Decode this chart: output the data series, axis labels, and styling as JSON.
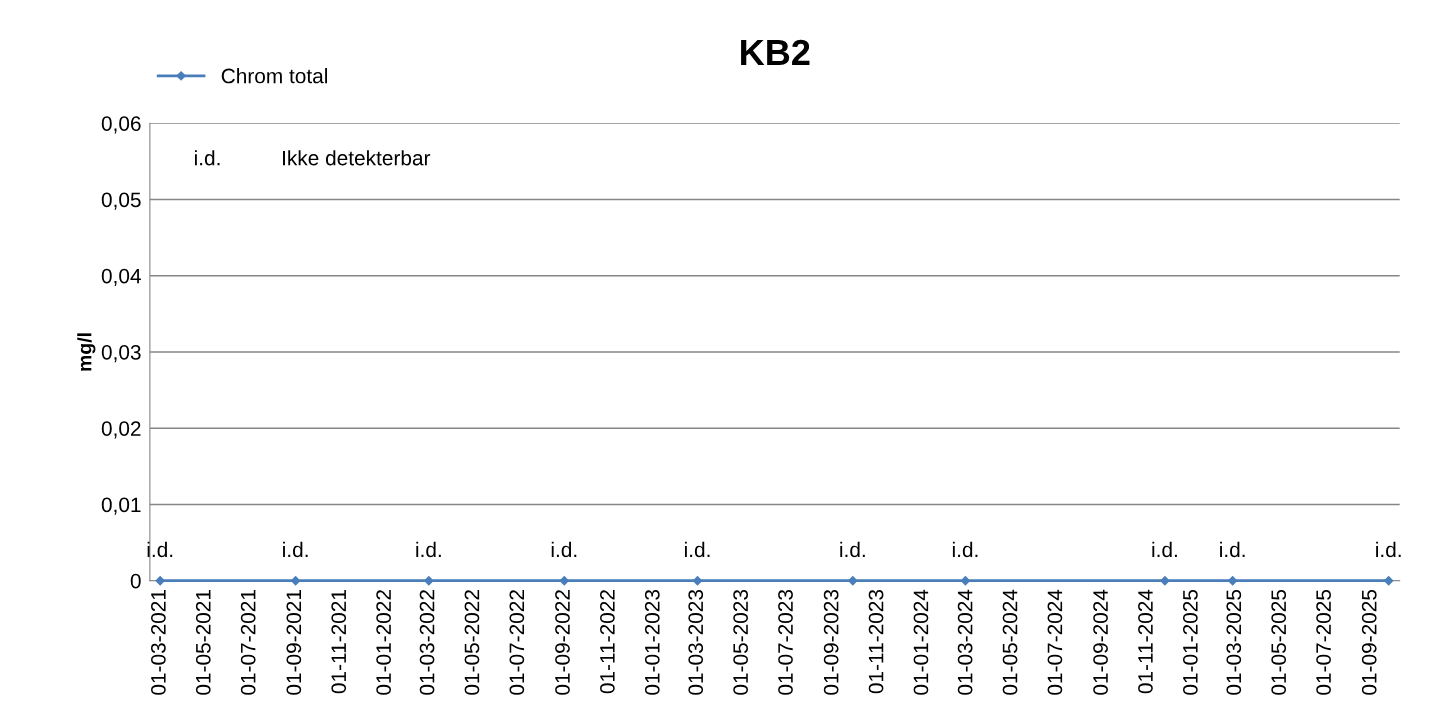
{
  "chart_data": {
    "type": "line",
    "title": "KB2",
    "ylabel": "mg/l",
    "x": [
      "2021-03-01",
      "2021-09-01",
      "2022-03-01",
      "2022-09-01",
      "2023-03-01",
      "2023-09-28",
      "2024-02-28",
      "2024-11-25",
      "2025-02-25",
      "2025-09-25"
    ],
    "series": [
      {
        "name": "Chrom total",
        "color": "#4a7ebb",
        "values": [
          0,
          0,
          0,
          0,
          0,
          0,
          0,
          0,
          0,
          0
        ],
        "value_labels": [
          "i.d.",
          "i.d.",
          "i.d.",
          "i.d.",
          "i.d.",
          "i.d.",
          "i.d.",
          "i.d.",
          "i.d.",
          "i.d."
        ]
      }
    ],
    "annotations": [
      "i.d.",
      "Ikke detekterbar"
    ],
    "xlim": [
      "2021-02-15",
      "2025-10-10"
    ],
    "xticks": [
      {
        "value": "2021-03-01",
        "label": "01-03-2021"
      },
      {
        "value": "2021-05-01",
        "label": "01-05-2021"
      },
      {
        "value": "2021-07-01",
        "label": "01-07-2021"
      },
      {
        "value": "2021-09-01",
        "label": "01-09-2021"
      },
      {
        "value": "2021-11-01",
        "label": "01-11-2021"
      },
      {
        "value": "2022-01-01",
        "label": "01-01-2022"
      },
      {
        "value": "2022-03-01",
        "label": "01-03-2022"
      },
      {
        "value": "2022-05-01",
        "label": "01-05-2022"
      },
      {
        "value": "2022-07-01",
        "label": "01-07-2022"
      },
      {
        "value": "2022-09-01",
        "label": "01-09-2022"
      },
      {
        "value": "2022-11-01",
        "label": "01-11-2022"
      },
      {
        "value": "2023-01-01",
        "label": "01-01-2023"
      },
      {
        "value": "2023-03-01",
        "label": "01-03-2023"
      },
      {
        "value": "2023-05-01",
        "label": "01-05-2023"
      },
      {
        "value": "2023-07-01",
        "label": "01-07-2023"
      },
      {
        "value": "2023-09-01",
        "label": "01-09-2023"
      },
      {
        "value": "2023-11-01",
        "label": "01-11-2023"
      },
      {
        "value": "2024-01-01",
        "label": "01-01-2024"
      },
      {
        "value": "2024-03-01",
        "label": "01-03-2024"
      },
      {
        "value": "2024-05-01",
        "label": "01-05-2024"
      },
      {
        "value": "2024-07-01",
        "label": "01-07-2024"
      },
      {
        "value": "2024-09-01",
        "label": "01-09-2024"
      },
      {
        "value": "2024-11-01",
        "label": "01-11-2024"
      },
      {
        "value": "2025-01-01",
        "label": "01-01-2025"
      },
      {
        "value": "2025-03-01",
        "label": "01-03-2025"
      },
      {
        "value": "2025-05-01",
        "label": "01-05-2025"
      },
      {
        "value": "2025-07-01",
        "label": "01-07-2025"
      },
      {
        "value": "2025-09-01",
        "label": "01-09-2025"
      }
    ],
    "ylim": [
      0,
      0.06
    ],
    "yticks": [
      {
        "value": 0,
        "label": "0"
      },
      {
        "value": 0.01,
        "label": "0,01"
      },
      {
        "value": 0.02,
        "label": "0,02"
      },
      {
        "value": 0.03,
        "label": "0,03"
      },
      {
        "value": 0.04,
        "label": "0,04"
      },
      {
        "value": 0.05,
        "label": "0,05"
      },
      {
        "value": 0.06,
        "label": "0,06"
      }
    ],
    "grid": "y",
    "legend": "top left",
    "marker": "diamond",
    "line_style": "solid"
  }
}
